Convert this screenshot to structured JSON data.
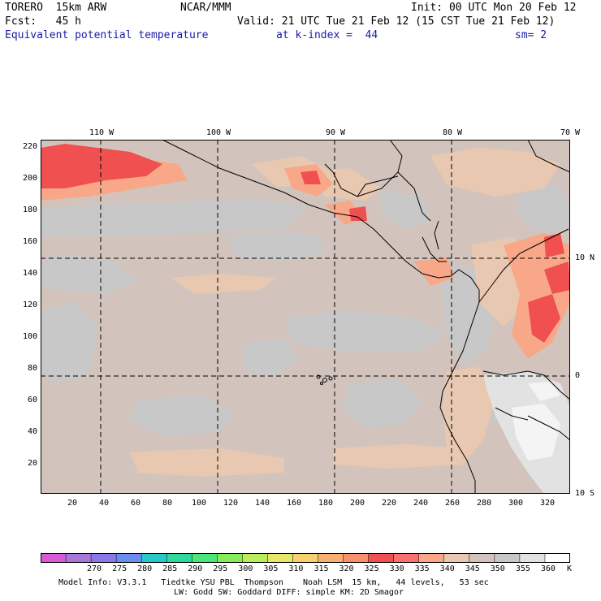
{
  "header": {
    "model": "TORERO  15km ARW",
    "org": "NCAR/MMM",
    "init": "Init: 00 UTC Mon 20 Feb 12",
    "fcst": "Fcst:   45 h",
    "valid": "Valid: 21 UTC Tue 21 Feb 12 (15 CST Tue 21 Feb 12)",
    "field": "Equivalent potential temperature",
    "level": "at k-index =  44",
    "smooth": "sm= 2"
  },
  "axes": {
    "x_ticks": [
      "20",
      "40",
      "60",
      "80",
      "100",
      "120",
      "140",
      "160",
      "180",
      "200",
      "220",
      "240",
      "260",
      "280",
      "300",
      "320"
    ],
    "y_ticks": [
      "220",
      "200",
      "180",
      "160",
      "140",
      "120",
      "100",
      "80",
      "60",
      "40",
      "20"
    ],
    "lon_labels": [
      "110 W",
      "100 W",
      "90 W",
      "80 W",
      "70 W"
    ],
    "lat_labels": [
      "10 N",
      "0",
      "10 S"
    ]
  },
  "colorbar": {
    "values": [
      "270",
      "275",
      "280",
      "285",
      "290",
      "295",
      "300",
      "305",
      "310",
      "315",
      "320",
      "325",
      "330",
      "335",
      "340",
      "345",
      "350",
      "355",
      "360"
    ],
    "unit": "K",
    "colors": [
      "#d75ad7",
      "#a878d8",
      "#8a78e8",
      "#6a8ef0",
      "#28c8c8",
      "#2ed8a0",
      "#4ae678",
      "#86ec5a",
      "#bcec5a",
      "#e8e868",
      "#f8d070",
      "#f8b070",
      "#f89070",
      "#f05050",
      "#f87070",
      "#f8a888",
      "#e8c8b0",
      "#d2c4bc",
      "#c8c8c8",
      "#e2e2e2",
      "#ffffff"
    ]
  },
  "footer": {
    "line1": "Model Info: V3.3.1   Tiedtke YSU PBL  Thompson    Noah LSM  15 km,   44 levels,   53 sec",
    "line2": "LW: Godd SW: Goddard DIFF: simple KM: 2D Smagor"
  }
}
